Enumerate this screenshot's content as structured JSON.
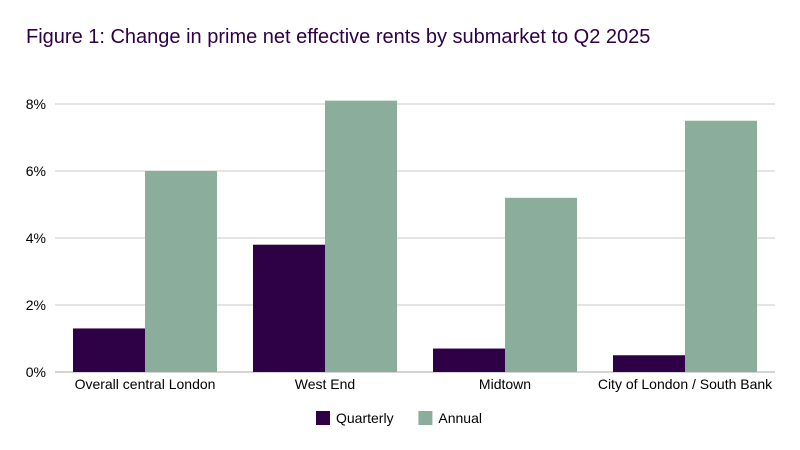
{
  "chart_data": {
    "type": "bar",
    "title": "Figure 1: Change in prime net effective rents by submarket to Q2 2025",
    "xlabel": "",
    "ylabel": "",
    "categories": [
      "Overall central London",
      "West End",
      "Midtown",
      "City of London / South Bank"
    ],
    "series": [
      {
        "name": "Quarterly",
        "color": "#2e0046",
        "values": [
          1.3,
          3.8,
          0.7,
          0.5
        ]
      },
      {
        "name": "Annual",
        "color": "#8aae9b",
        "values": [
          6.0,
          8.1,
          5.2,
          7.5
        ]
      }
    ],
    "ylim": [
      0,
      8
    ],
    "yticks": [
      0,
      2,
      4,
      6,
      8
    ],
    "ytick_labels": [
      "0%",
      "2%",
      "4%",
      "6%",
      "8%"
    ],
    "grid": true,
    "legend": "bottom-center",
    "grid_color": "#c8c8c8",
    "axis_color": "#aaaaaa"
  }
}
